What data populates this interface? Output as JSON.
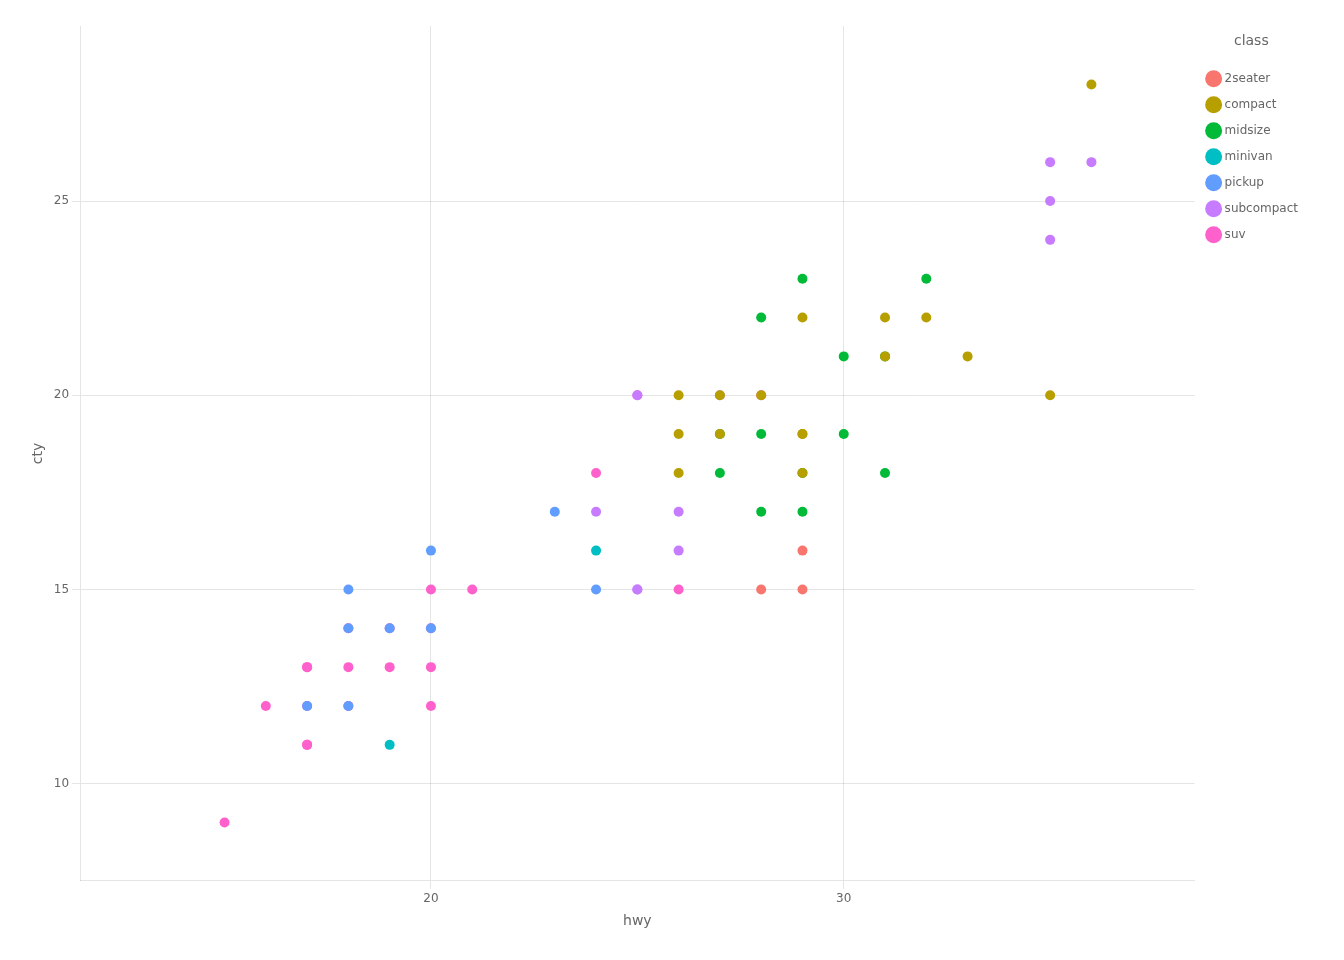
{
  "chart_data": {
    "type": "scatter",
    "xlabel": "hwy",
    "ylabel": "cty",
    "legend_title": "class",
    "legend": "right",
    "grid": true,
    "xlim": [
      11.5,
      38.5
    ],
    "ylim": [
      7.5,
      29.5
    ],
    "xticks": [
      20,
      30
    ],
    "yticks": [
      10,
      15,
      20,
      25
    ],
    "series": [
      {
        "name": "2seater",
        "color": "#F8766D",
        "x": [
          28,
          29,
          29
        ],
        "values": [
          15,
          16,
          15
        ]
      },
      {
        "name": "compact",
        "color": "#B79F00",
        "x": [
          26,
          28,
          29,
          26,
          27,
          29,
          26,
          29,
          29,
          31,
          32,
          31,
          33,
          35,
          36,
          27
        ],
        "values": [
          20,
          20,
          19,
          19,
          19,
          19,
          18,
          18,
          22,
          22,
          22,
          21,
          21,
          20,
          28,
          20
        ]
      },
      {
        "name": "midsize",
        "color": "#00BA38",
        "x": [
          28,
          29,
          32,
          27,
          28,
          30,
          27,
          29,
          31,
          30,
          31,
          28,
          29
        ],
        "values": [
          22,
          23,
          23,
          19,
          19,
          19,
          18,
          18,
          18,
          21,
          21,
          17,
          17
        ]
      },
      {
        "name": "minivan",
        "color": "#00BFC4",
        "x": [
          19,
          24
        ],
        "values": [
          11,
          16
        ]
      },
      {
        "name": "pickup",
        "color": "#619CFF",
        "x": [
          24,
          18,
          18,
          17,
          18,
          23,
          20,
          19,
          20
        ],
        "values": [
          15,
          15,
          14,
          12,
          12,
          17,
          16,
          14,
          14
        ]
      },
      {
        "name": "subcompact",
        "color": "#C77CFF",
        "x": [
          27,
          26,
          26,
          25,
          25,
          35,
          36,
          35,
          35,
          24,
          25
        ],
        "values": [
          20,
          17,
          16,
          15,
          15,
          26,
          26,
          25,
          24,
          17,
          20
        ]
      },
      {
        "name": "suv",
        "color": "#FF61CC",
        "x": [
          15,
          17,
          17,
          17,
          18,
          18,
          19,
          19,
          20,
          17,
          18,
          20,
          20,
          21,
          24,
          25,
          28,
          16,
          20,
          26,
          17
        ],
        "values": [
          9,
          11,
          11,
          12,
          12,
          14,
          14,
          13,
          13,
          13,
          13,
          15,
          14,
          15,
          18,
          20,
          20,
          12,
          12,
          15,
          13
        ]
      }
    ]
  }
}
